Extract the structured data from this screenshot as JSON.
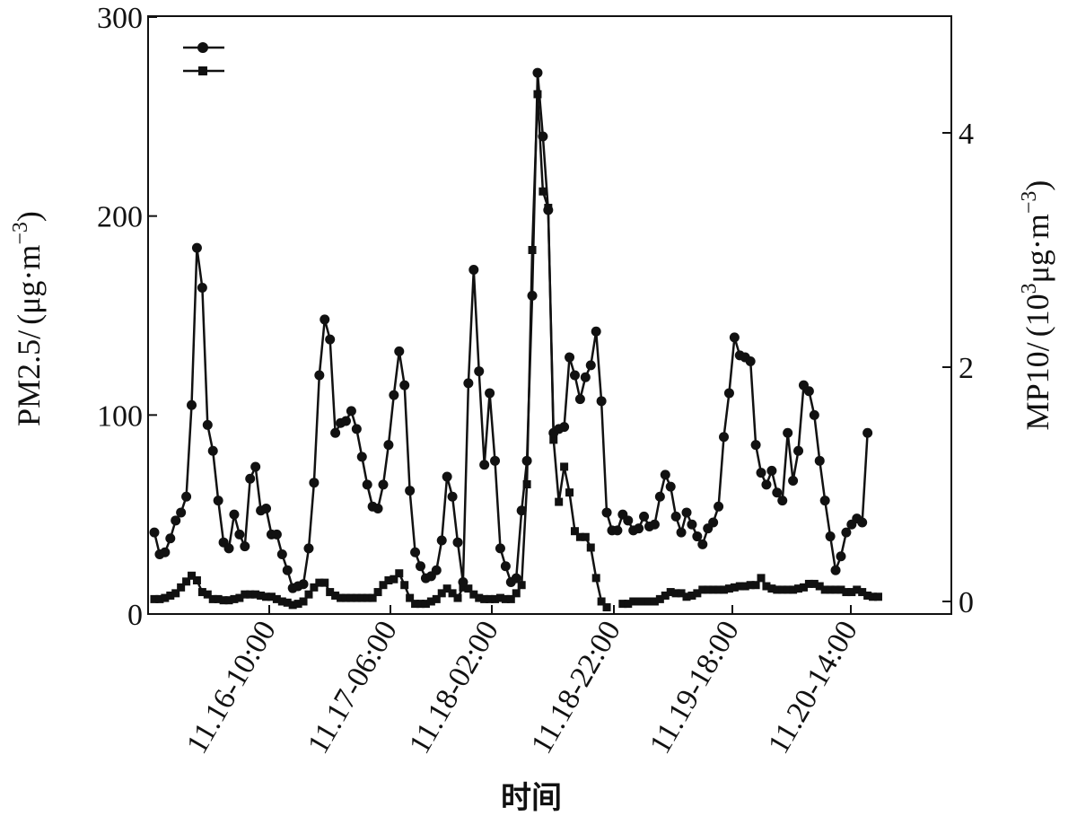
{
  "chart_data": {
    "type": "line",
    "xlabel": "时间",
    "x_tick_labels": [
      "11.16-10:00",
      "11.17-06:00",
      "11.18-02:00",
      "11.18-22:00",
      "11.19-18:00",
      "11.20-14:00"
    ],
    "y_left": {
      "ticks": [
        "0",
        "100",
        "200",
        "300"
      ],
      "range": [
        0,
        300
      ],
      "label": {
        "main": "PM2.5/",
        "open": "(",
        "unit": "μg·m",
        "sup": "−3",
        "close": ")"
      }
    },
    "y_right": {
      "ticks": [
        "0",
        "2",
        "4"
      ],
      "range": [
        0,
        5
      ],
      "label": {
        "main": "MP10/",
        "open": "(",
        "base": "10",
        "base_sup": "3",
        "unit": "μg·m",
        "sup": "−3",
        "close": ")"
      }
    },
    "legend": {
      "placement": "top-left",
      "entries": [
        {
          "marker": "circle",
          "label": ""
        },
        {
          "marker": "square",
          "label": ""
        }
      ]
    },
    "series": [
      {
        "axis": "left",
        "marker": "circle",
        "values": [
          41,
          30,
          31,
          38,
          47,
          51,
          59,
          105,
          184,
          164,
          95,
          82,
          57,
          36,
          33,
          50,
          40,
          34,
          68,
          74,
          52,
          53,
          40,
          40,
          30,
          22,
          13,
          14,
          15,
          33,
          66,
          120,
          148,
          138,
          91,
          96,
          97,
          102,
          93,
          79,
          65,
          54,
          53,
          65,
          85,
          110,
          132,
          115,
          62,
          31,
          24,
          18,
          19,
          22,
          37,
          69,
          59,
          36,
          16,
          116,
          173,
          122,
          75,
          111,
          77,
          33,
          24,
          16,
          18,
          52,
          77,
          160,
          272,
          240,
          203,
          91,
          93,
          94,
          129,
          120,
          108,
          119,
          125,
          142,
          107,
          51,
          42,
          42,
          50,
          47,
          42,
          43,
          49,
          44,
          45,
          59,
          70,
          64,
          49,
          41,
          51,
          45,
          39,
          35,
          43,
          46,
          54,
          89,
          111,
          139,
          130,
          129,
          127,
          85,
          71,
          65,
          72,
          61,
          57,
          91,
          67,
          82,
          115,
          112,
          100,
          77,
          57,
          39,
          22,
          29,
          41,
          45,
          48,
          46,
          91
        ]
      },
      {
        "axis": "right",
        "marker": "square",
        "values": [
          0.02,
          0.02,
          0.03,
          0.05,
          0.07,
          0.12,
          0.17,
          0.22,
          0.18,
          0.08,
          0.06,
          0.02,
          0.02,
          0.01,
          0.01,
          0.02,
          0.03,
          0.06,
          0.06,
          0.06,
          0.05,
          0.04,
          0.04,
          0.02,
          0.0,
          -0.01,
          -0.03,
          -0.02,
          0.0,
          0.06,
          0.12,
          0.16,
          0.16,
          0.08,
          0.05,
          0.03,
          0.03,
          0.03,
          0.03,
          0.03,
          0.03,
          0.03,
          0.08,
          0.14,
          0.18,
          0.19,
          0.24,
          0.14,
          0.03,
          -0.02,
          -0.02,
          -0.02,
          0.0,
          0.02,
          0.07,
          0.11,
          0.07,
          0.03,
          0.12,
          0.11,
          0.06,
          0.03,
          0.02,
          0.02,
          0.02,
          0.03,
          0.02,
          0.02,
          0.07,
          0.14,
          1.0,
          3.0,
          4.33,
          3.5,
          3.36,
          1.38,
          0.85,
          1.15,
          0.93,
          0.6,
          0.55,
          0.55,
          0.46,
          0.2,
          0.0,
          -0.05,
          null,
          null,
          -0.02,
          -0.02,
          0.0,
          0.0,
          0.0,
          0.0,
          0.0,
          0.02,
          0.05,
          0.08,
          0.07,
          0.07,
          0.04,
          0.05,
          0.07,
          0.1,
          0.1,
          0.1,
          0.1,
          0.1,
          0.11,
          0.12,
          0.13,
          0.13,
          0.14,
          0.14,
          0.2,
          0.13,
          0.11,
          0.1,
          0.1,
          0.1,
          0.1,
          0.11,
          0.12,
          0.15,
          0.15,
          0.13,
          0.1,
          0.1,
          0.1,
          0.1,
          0.08,
          0.08,
          0.1,
          0.08,
          0.05,
          0.04,
          0.04
        ]
      }
    ]
  }
}
